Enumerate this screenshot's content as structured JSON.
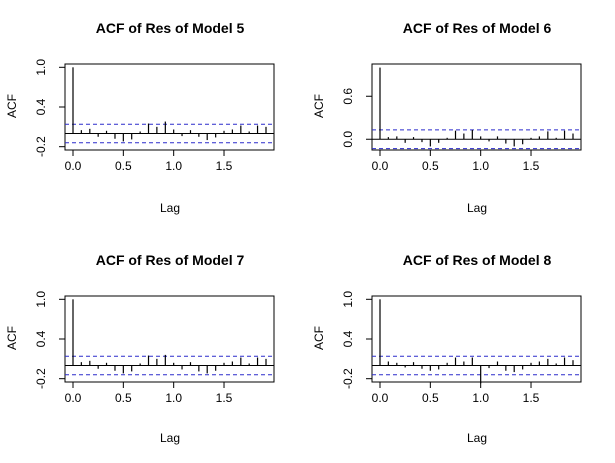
{
  "figure": {
    "colors": {
      "ci_line": "#2b2bcc",
      "bars": "#000000",
      "axes": "#000000",
      "zero_line": "#000000"
    }
  },
  "chart_data": [
    {
      "type": "bar",
      "title": "ACF of Res of Model 5",
      "xlabel": "Lag",
      "ylabel": "ACF",
      "xticks": [
        "0.0",
        "0.5",
        "1.0",
        "1.5"
      ],
      "yticks": [
        "-0.2",
        "0.4",
        "1.0"
      ],
      "xlim": [
        0,
        1.917
      ],
      "ylim": [
        -0.25,
        1.05
      ],
      "ci": 0.14,
      "lags": [
        0,
        0.083,
        0.167,
        0.25,
        0.333,
        0.417,
        0.5,
        0.583,
        0.667,
        0.75,
        0.833,
        0.917,
        1.0,
        1.083,
        1.167,
        1.25,
        1.333,
        1.417,
        1.5,
        1.583,
        1.667,
        1.75,
        1.833,
        1.917
      ],
      "values": [
        1.0,
        0.05,
        0.07,
        -0.05,
        0.04,
        -0.08,
        -0.12,
        -0.09,
        0.03,
        0.15,
        0.1,
        0.18,
        0.06,
        -0.04,
        0.05,
        -0.05,
        -0.1,
        -0.06,
        0.04,
        0.06,
        0.12,
        0.03,
        0.12,
        0.1
      ]
    },
    {
      "type": "bar",
      "title": "ACF of Res of Model 6",
      "xlabel": "Lag",
      "ylabel": "ACF",
      "xticks": [
        "0.0",
        "0.5",
        "1.0",
        "1.5"
      ],
      "yticks": [
        "0.0",
        "0.6"
      ],
      "xlim": [
        0,
        1.917
      ],
      "ylim": [
        -0.15,
        1.05
      ],
      "ci": 0.13,
      "lags": [
        0,
        0.083,
        0.167,
        0.25,
        0.333,
        0.417,
        0.5,
        0.583,
        0.667,
        0.75,
        0.833,
        0.917,
        1.0,
        1.083,
        1.167,
        1.25,
        1.333,
        1.417,
        1.5,
        1.583,
        1.667,
        1.75,
        1.833,
        1.917
      ],
      "values": [
        1.0,
        0.03,
        0.04,
        -0.05,
        0.03,
        -0.04,
        -0.1,
        -0.05,
        0.02,
        0.12,
        0.08,
        0.13,
        0.04,
        -0.03,
        0.04,
        -0.06,
        -0.1,
        -0.07,
        0.02,
        0.04,
        0.11,
        0.02,
        0.12,
        0.08
      ]
    },
    {
      "type": "bar",
      "title": "ACF of Res of Model 7",
      "xlabel": "Lag",
      "ylabel": "ACF",
      "xticks": [
        "0.0",
        "0.5",
        "1.0",
        "1.5"
      ],
      "yticks": [
        "-0.2",
        "0.4",
        "1.0"
      ],
      "xlim": [
        0,
        1.917
      ],
      "ylim": [
        -0.25,
        1.05
      ],
      "ci": 0.14,
      "lags": [
        0,
        0.083,
        0.167,
        0.25,
        0.333,
        0.417,
        0.5,
        0.583,
        0.667,
        0.75,
        0.833,
        0.917,
        1.0,
        1.083,
        1.167,
        1.25,
        1.333,
        1.417,
        1.5,
        1.583,
        1.667,
        1.75,
        1.833,
        1.917
      ],
      "values": [
        1.0,
        0.05,
        0.07,
        -0.05,
        0.04,
        -0.08,
        -0.12,
        -0.09,
        0.03,
        0.15,
        0.1,
        0.16,
        0.04,
        -0.06,
        0.05,
        -0.09,
        -0.12,
        -0.08,
        0.04,
        0.06,
        0.12,
        0.03,
        0.12,
        0.1
      ]
    },
    {
      "type": "bar",
      "title": "ACF of Res of Model 8",
      "xlabel": "Lag",
      "ylabel": "ACF",
      "xticks": [
        "0.0",
        "0.5",
        "1.0",
        "1.5"
      ],
      "yticks": [
        "-0.2",
        "0.4",
        "1.0"
      ],
      "xlim": [
        0,
        1.917
      ],
      "ylim": [
        -0.25,
        1.05
      ],
      "ci": 0.14,
      "lags": [
        0,
        0.083,
        0.167,
        0.25,
        0.333,
        0.417,
        0.5,
        0.583,
        0.667,
        0.75,
        0.833,
        0.917,
        1.0,
        1.083,
        1.167,
        1.25,
        1.333,
        1.417,
        1.5,
        1.583,
        1.667,
        1.75,
        1.833,
        1.917
      ],
      "values": [
        1.0,
        0.06,
        0.04,
        -0.03,
        0.05,
        -0.05,
        -0.08,
        -0.06,
        0.04,
        0.12,
        0.06,
        0.12,
        -0.27,
        -0.04,
        0.06,
        -0.08,
        -0.1,
        -0.06,
        0.04,
        0.06,
        0.1,
        0.03,
        0.12,
        0.08
      ]
    }
  ]
}
